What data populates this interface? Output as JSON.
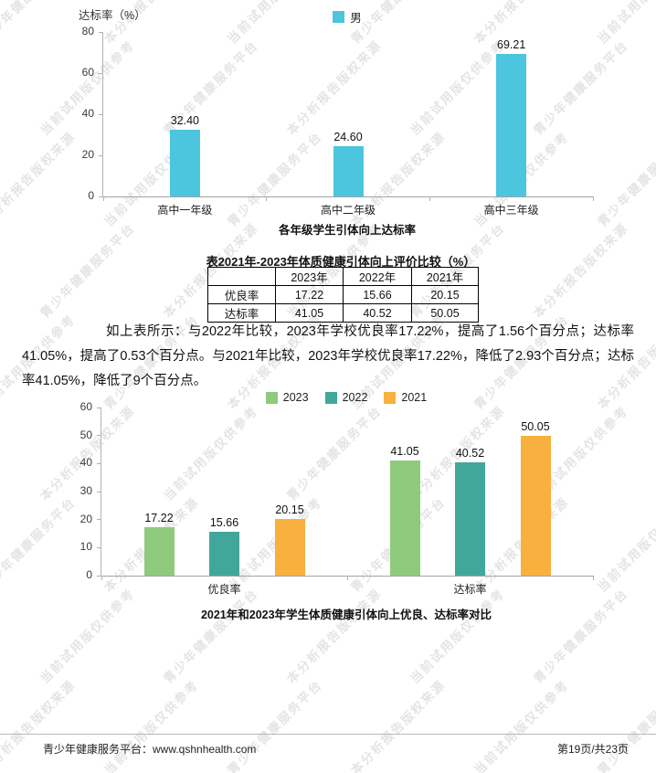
{
  "watermark": {
    "phrases": [
      "青少年健康服务平台",
      "本分析报告版权来源",
      "当前试用版仅供参考"
    ]
  },
  "chart_data": [
    {
      "type": "bar",
      "title": "各年级学生引体向上达标率",
      "ylabel": "达标率（%）",
      "xlabel": "",
      "categories": [
        "高中一年级",
        "高中二年级",
        "高中三年级"
      ],
      "series": [
        {
          "name": "男",
          "color": "#4cc5df",
          "values": [
            32.4,
            24.6,
            69.21
          ]
        }
      ],
      "ylim": [
        0,
        80
      ],
      "ytick_step": 20,
      "grid": false,
      "legend_position": "top",
      "value_label_decimals": 2
    },
    {
      "type": "bar",
      "title": "2021年和2023年学生体质健康引体向上优良、达标率对比",
      "ylabel": "",
      "xlabel": "",
      "categories": [
        "优良率",
        "达标率"
      ],
      "series": [
        {
          "name": "2023",
          "color": "#8fca7d",
          "values": [
            17.22,
            41.05
          ]
        },
        {
          "name": "2022",
          "color": "#42a79b",
          "values": [
            15.66,
            40.52
          ]
        },
        {
          "name": "2021",
          "color": "#f8b03f",
          "values": [
            20.15,
            50.05
          ]
        }
      ],
      "ylim": [
        0,
        60
      ],
      "ytick_step": 10,
      "grid": false,
      "legend_position": "top",
      "value_label_decimals": 2
    }
  ],
  "table": {
    "title": "表2021年-2023年体质健康引体向上评价比较（%）",
    "columns": [
      "",
      "2023年",
      "2022年",
      "2021年"
    ],
    "rows": [
      {
        "label": "优良率",
        "values": [
          "17.22",
          "15.66",
          "20.15"
        ]
      },
      {
        "label": "达标率",
        "values": [
          "41.05",
          "40.52",
          "50.05"
        ]
      }
    ]
  },
  "paragraph": "如上表所示：与2022年比较，2023年学校优良率17.22%，提高了1.56个百分点；达标率41.05%，提高了0.53个百分点。与2021年比较，2023年学校优良率17.22%，降低了2.93个百分点；达标率41.05%，降低了9个百分点。",
  "page": {
    "footer_left": "青少年健康服务平台：www.qshnhealth.com",
    "footer_right": "第19页/共23页"
  }
}
